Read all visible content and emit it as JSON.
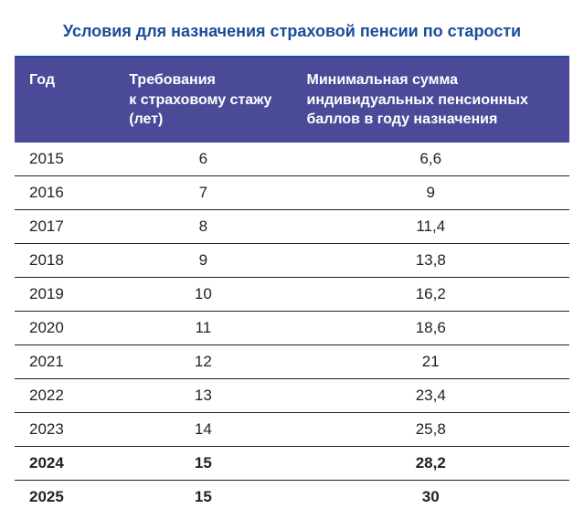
{
  "title": "Условия для назначения страховой пенсии по старости",
  "columns": {
    "c1": "Год",
    "c2": "Требования к страховому стажу (лет)",
    "c3": "Минимальная сумма индивидуальных пенсионных баллов в году назначения"
  },
  "rows": [
    {
      "year": "2015",
      "req": "6",
      "min": "6,6",
      "bold": false
    },
    {
      "year": "2016",
      "req": "7",
      "min": "9",
      "bold": false
    },
    {
      "year": "2017",
      "req": "8",
      "min": "11,4",
      "bold": false
    },
    {
      "year": "2018",
      "req": "9",
      "min": "13,8",
      "bold": false
    },
    {
      "year": "2019",
      "req": "10",
      "min": "16,2",
      "bold": false
    },
    {
      "year": "2020",
      "req": "11",
      "min": "18,6",
      "bold": false
    },
    {
      "year": "2021",
      "req": "12",
      "min": "21",
      "bold": false
    },
    {
      "year": "2022",
      "req": "13",
      "min": "23,4",
      "bold": false
    },
    {
      "year": "2023",
      "req": "14",
      "min": "25,8",
      "bold": false
    },
    {
      "year": "2024",
      "req": "15",
      "min": "28,2",
      "bold": true
    },
    {
      "year": "2025",
      "req": "15",
      "min": "30",
      "bold": true
    }
  ],
  "style": {
    "title_color": "#1a4d99",
    "header_bg": "#4a4a99",
    "header_fg": "#ffffff",
    "row_border": "#222222",
    "title_fontsize": 18,
    "header_fontsize": 16,
    "cell_fontsize": 17
  }
}
